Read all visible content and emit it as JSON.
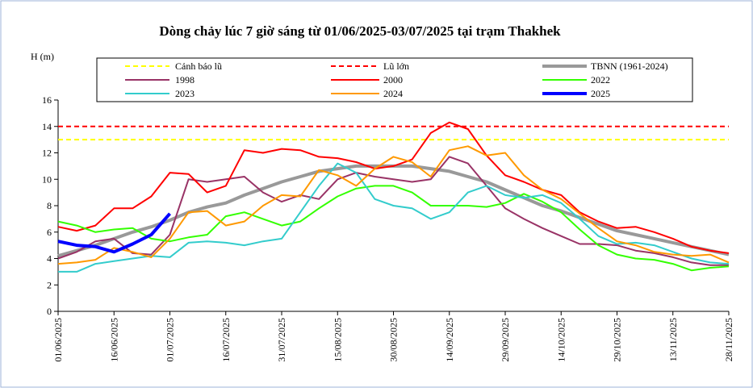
{
  "chart_data": {
    "type": "line",
    "title": "Dòng chảy lúc 7 giờ sáng từ 01/06/2025-03/07/2025 tại trạm Thakhek",
    "y_label": "H (m)",
    "x": [
      "01/06/2025",
      "06/06/2025",
      "11/06/2025",
      "16/06/2025",
      "21/06/2025",
      "26/06/2025",
      "01/07/2025",
      "06/07/2025",
      "11/07/2025",
      "16/07/2025",
      "21/07/2025",
      "26/07/2025",
      "31/07/2025",
      "05/08/2025",
      "10/08/2025",
      "15/08/2025",
      "20/08/2025",
      "25/08/2025",
      "30/08/2025",
      "04/09/2025",
      "09/09/2025",
      "14/09/2025",
      "19/09/2025",
      "24/09/2025",
      "29/09/2025",
      "04/10/2025",
      "09/10/2025",
      "14/10/2025",
      "19/10/2025",
      "24/10/2025",
      "29/10/2025",
      "03/11/2025",
      "08/11/2025",
      "13/11/2025",
      "18/11/2025",
      "23/11/2025",
      "28/11/2025"
    ],
    "xlim": [
      "01/06/2025",
      "28/11/2025"
    ],
    "xticks": [
      "01/06/2025",
      "16/06/2025",
      "01/07/2025",
      "16/07/2025",
      "31/07/2025",
      "15/08/2025",
      "30/08/2025",
      "14/09/2025",
      "29/09/2025",
      "14/10/2025",
      "29/10/2025",
      "13/11/2025",
      "28/11/2025"
    ],
    "ylim": [
      0,
      16
    ],
    "yticks": [
      0,
      2,
      4,
      6,
      8,
      10,
      12,
      14,
      16
    ],
    "levels": [
      {
        "name": "Cảnh báo lũ",
        "color": "#ffff00",
        "value": 13
      },
      {
        "name": "Lũ lớn",
        "color": "#ff0000",
        "value": 14
      }
    ],
    "series": [
      {
        "name": "TBNN (1961-2024)",
        "color": "#999999",
        "width": 4,
        "values": [
          4.2,
          4.6,
          5.0,
          5.5,
          6.0,
          6.4,
          6.9,
          7.5,
          7.9,
          8.2,
          8.8,
          9.3,
          9.8,
          10.2,
          10.6,
          10.8,
          11.0,
          11.0,
          11.0,
          11.0,
          10.8,
          10.6,
          10.2,
          9.8,
          9.2,
          8.6,
          8.0,
          7.6,
          7.1,
          6.6,
          6.1,
          5.8,
          5.5,
          5.2,
          4.9,
          4.6,
          4.3
        ]
      },
      {
        "name": "1998",
        "color": "#993366",
        "width": 2,
        "values": [
          4.0,
          4.5,
          5.3,
          5.5,
          4.4,
          4.3,
          5.8,
          10.0,
          9.8,
          10.0,
          10.2,
          9.0,
          8.3,
          8.8,
          8.5,
          10.0,
          10.5,
          10.2,
          10.0,
          9.8,
          10.0,
          11.7,
          11.2,
          9.5,
          7.8,
          7.0,
          6.3,
          5.7,
          5.1,
          5.1,
          5.0,
          4.6,
          4.4,
          4.1,
          3.7,
          3.5,
          3.5
        ]
      },
      {
        "name": "2000",
        "color": "#ff0000",
        "width": 2,
        "values": [
          6.4,
          6.1,
          6.5,
          7.8,
          7.8,
          8.7,
          10.5,
          10.4,
          9.0,
          9.5,
          12.2,
          12.0,
          12.3,
          12.2,
          11.7,
          11.6,
          11.3,
          10.8,
          11.0,
          11.5,
          13.5,
          14.3,
          13.8,
          11.8,
          10.3,
          9.8,
          9.2,
          8.8,
          7.5,
          6.8,
          6.3,
          6.4,
          6.0,
          5.5,
          4.9,
          4.6,
          4.4
        ]
      },
      {
        "name": "2022",
        "color": "#33ff00",
        "width": 2,
        "values": [
          6.8,
          6.5,
          6.0,
          6.2,
          6.3,
          5.5,
          5.3,
          5.6,
          5.8,
          7.2,
          7.5,
          7.0,
          6.5,
          6.8,
          7.8,
          8.7,
          9.3,
          9.5,
          9.5,
          9.0,
          8.0,
          8.0,
          8.0,
          7.9,
          8.2,
          8.9,
          8.3,
          7.5,
          6.2,
          5.0,
          4.3,
          4.0,
          3.9,
          3.6,
          3.1,
          3.3,
          3.4
        ]
      },
      {
        "name": "2023",
        "color": "#33cccc",
        "width": 2,
        "values": [
          3.0,
          3.0,
          3.6,
          3.8,
          4.0,
          4.2,
          4.1,
          5.2,
          5.3,
          5.2,
          5.0,
          5.3,
          5.5,
          7.5,
          9.5,
          11.2,
          10.5,
          8.5,
          8.0,
          7.8,
          7.0,
          7.5,
          9.0,
          9.5,
          8.8,
          8.6,
          8.8,
          8.2,
          7.0,
          5.7,
          5.1,
          5.2,
          5.0,
          4.5,
          4.0,
          3.7,
          3.6
        ]
      },
      {
        "name": "2024",
        "color": "#ff9900",
        "width": 2,
        "values": [
          3.6,
          3.7,
          3.9,
          4.8,
          4.5,
          4.1,
          5.5,
          7.5,
          7.6,
          6.5,
          6.8,
          8.0,
          8.8,
          8.7,
          10.7,
          10.3,
          9.5,
          10.8,
          11.7,
          11.3,
          10.2,
          12.2,
          12.5,
          11.8,
          12.0,
          10.3,
          9.2,
          8.5,
          7.4,
          6.3,
          5.3,
          5.0,
          4.5,
          4.3,
          4.2,
          4.3,
          3.7
        ]
      },
      {
        "name": "2025",
        "color": "#0000ff",
        "width": 4,
        "values": [
          5.3,
          5.0,
          4.9,
          4.5,
          5.1,
          5.8,
          7.4,
          null,
          null,
          null,
          null,
          null,
          null,
          null,
          null,
          null,
          null,
          null,
          null,
          null,
          null,
          null,
          null,
          null,
          null,
          null,
          null,
          null,
          null,
          null,
          null,
          null,
          null,
          null,
          null,
          null,
          null
        ]
      }
    ]
  }
}
